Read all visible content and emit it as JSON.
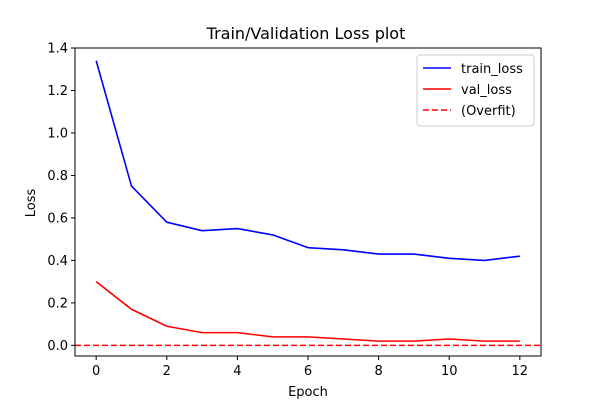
{
  "chart_data": {
    "type": "line",
    "title": "Train/Validation Loss plot",
    "xlabel": "Epoch",
    "ylabel": "Loss",
    "xlim": [
      -0.6,
      12.6
    ],
    "ylim": [
      -0.05,
      1.4
    ],
    "xticks": [
      0,
      2,
      4,
      6,
      8,
      10,
      12
    ],
    "yticks": [
      0.0,
      0.2,
      0.4,
      0.6,
      0.8,
      1.0,
      1.2,
      1.4
    ],
    "xtick_labels": [
      "0",
      "2",
      "4",
      "6",
      "8",
      "10",
      "12"
    ],
    "ytick_labels": [
      "0.0",
      "0.2",
      "0.4",
      "0.6",
      "0.8",
      "1.0",
      "1.2",
      "1.4"
    ],
    "legend_position": "top-right",
    "grid": false,
    "x": [
      0,
      1,
      2,
      3,
      4,
      5,
      6,
      7,
      8,
      9,
      10,
      11,
      12
    ],
    "series": [
      {
        "name": "train_loss",
        "color": "#0000ff",
        "style": "solid",
        "values": [
          1.34,
          0.75,
          0.58,
          0.54,
          0.55,
          0.52,
          0.46,
          0.45,
          0.43,
          0.43,
          0.41,
          0.4,
          0.42
        ]
      },
      {
        "name": "val_loss",
        "color": "#ff0000",
        "style": "solid",
        "values": [
          0.3,
          0.17,
          0.09,
          0.06,
          0.06,
          0.04,
          0.04,
          0.03,
          0.02,
          0.02,
          0.03,
          0.02,
          0.02
        ]
      }
    ],
    "reference_lines": [
      {
        "name": "(Overfit)",
        "color": "#ff0000",
        "style": "dashed",
        "y": 0.0
      }
    ]
  }
}
